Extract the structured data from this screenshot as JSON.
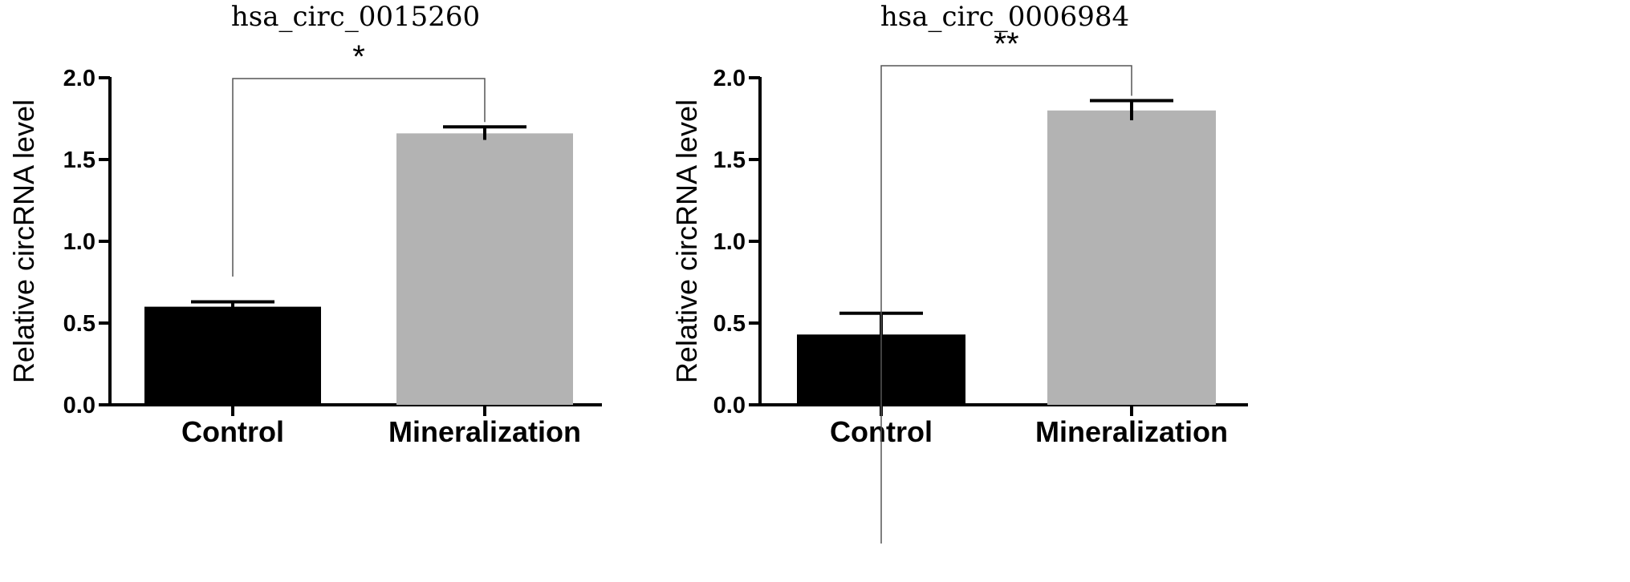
{
  "chart_data": [
    {
      "type": "bar",
      "title": "hsa_circ_0015260",
      "xlabel": "",
      "ylabel": "Relative circRNA level",
      "ylim": [
        0,
        2.0
      ],
      "yticks": [
        "0.0",
        "0.5",
        "1.0",
        "1.5",
        "2.0"
      ],
      "categories": [
        "Control",
        "Mineralization"
      ],
      "values": [
        0.6,
        1.66
      ],
      "errors": [
        0.03,
        0.04
      ],
      "bar_colors": [
        "#000000",
        "#b3b3b3"
      ],
      "significance": "*",
      "grid": false
    },
    {
      "type": "bar",
      "title": "hsa_circ_0006984",
      "xlabel": "",
      "ylabel": "Relative circRNA level",
      "ylim": [
        0,
        2.0
      ],
      "yticks": [
        "0.0",
        "0.5",
        "1.0",
        "1.5",
        "2.0"
      ],
      "categories": [
        "Control",
        "Mineralization"
      ],
      "values": [
        0.43,
        1.8
      ],
      "errors": [
        0.13,
        0.06
      ],
      "bar_colors": [
        "#000000",
        "#b3b3b3"
      ],
      "significance": "**",
      "grid": false
    }
  ]
}
